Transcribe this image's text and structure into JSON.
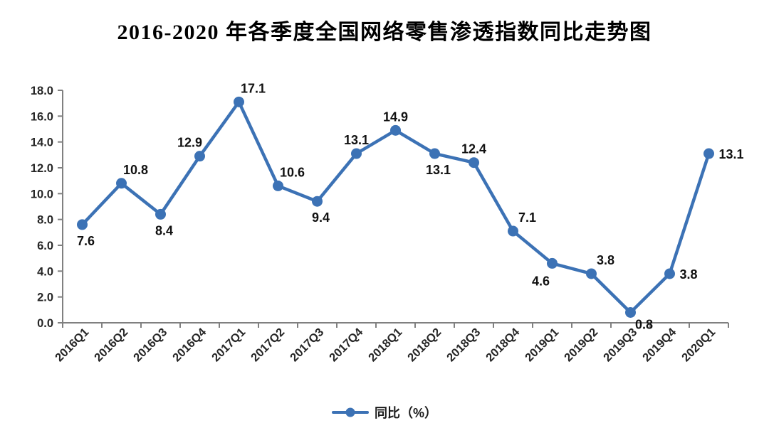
{
  "page": {
    "background": "#ffffff"
  },
  "chart_data": {
    "type": "line",
    "title": "2016-2020 年各季度全国网络零售渗透指数同比走势图",
    "legend": "同比（%）",
    "legend_position": "bottom",
    "categories": [
      "2016Q1",
      "2016Q2",
      "2016Q3",
      "2016Q4",
      "2017Q1",
      "2017Q2",
      "2017Q3",
      "2017Q4",
      "2018Q1",
      "2018Q2",
      "2018Q3",
      "2018Q4",
      "2019Q1",
      "2019Q2",
      "2019Q3",
      "2019Q4",
      "2020Q1"
    ],
    "series": [
      {
        "name": "同比（%）",
        "values": [
          7.6,
          10.8,
          8.4,
          12.9,
          17.1,
          10.6,
          9.4,
          13.1,
          14.9,
          13.1,
          12.4,
          7.1,
          4.6,
          3.8,
          0.8,
          3.8,
          13.1
        ]
      }
    ],
    "xlabel": "",
    "ylabel": "",
    "ylim": [
      0,
      18
    ],
    "ytick_step": 2,
    "ytick_decimals": 1,
    "grid": false,
    "x_label_rotation": -45,
    "line_color": "#3C72B5",
    "axis_color": "#808080",
    "data_label_positions": [
      "below",
      "above-right",
      "below",
      "above-left",
      "above-right",
      "above-right",
      "below",
      "above",
      "above",
      "below",
      "above",
      "above-right",
      "below-left",
      "above-right",
      "below-right",
      "right",
      "right"
    ]
  }
}
